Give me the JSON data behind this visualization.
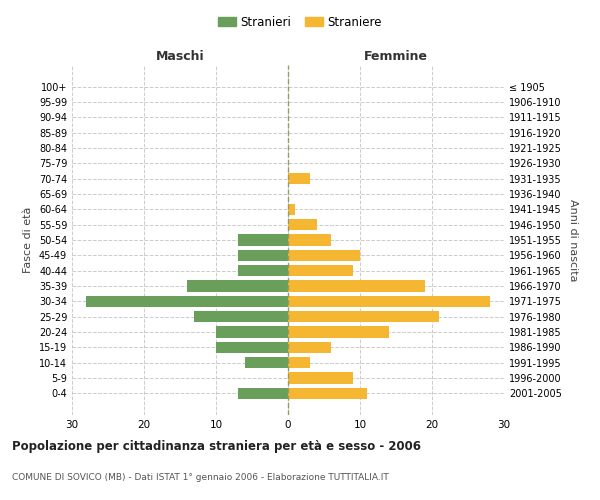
{
  "age_groups": [
    "100+",
    "95-99",
    "90-94",
    "85-89",
    "80-84",
    "75-79",
    "70-74",
    "65-69",
    "60-64",
    "55-59",
    "50-54",
    "45-49",
    "40-44",
    "35-39",
    "30-34",
    "25-29",
    "20-24",
    "15-19",
    "10-14",
    "5-9",
    "0-4"
  ],
  "birth_years": [
    "≤ 1905",
    "1906-1910",
    "1911-1915",
    "1916-1920",
    "1921-1925",
    "1926-1930",
    "1931-1935",
    "1936-1940",
    "1941-1945",
    "1946-1950",
    "1951-1955",
    "1956-1960",
    "1961-1965",
    "1966-1970",
    "1971-1975",
    "1976-1980",
    "1981-1985",
    "1986-1990",
    "1991-1995",
    "1996-2000",
    "2001-2005"
  ],
  "males": [
    0,
    0,
    0,
    0,
    0,
    0,
    0,
    0,
    0,
    0,
    7,
    7,
    7,
    14,
    28,
    13,
    10,
    10,
    6,
    0,
    7
  ],
  "females": [
    0,
    0,
    0,
    0,
    0,
    0,
    3,
    0,
    1,
    4,
    6,
    10,
    9,
    19,
    28,
    21,
    14,
    6,
    3,
    9,
    11
  ],
  "male_color": "#6a9f5b",
  "female_color": "#f5b731",
  "background_color": "#ffffff",
  "grid_color": "#cccccc",
  "xlim": [
    -30,
    30
  ],
  "xlabel_left": "Maschi",
  "xlabel_right": "Femmine",
  "ylabel_left": "Fasce di età",
  "ylabel_right": "Anni di nascita",
  "title": "Popolazione per cittadinanza straniera per età e sesso - 2006",
  "subtitle": "COMUNE DI SOVICO (MB) - Dati ISTAT 1° gennaio 2006 - Elaborazione TUTTITALIA.IT",
  "legend_stranieri": "Stranieri",
  "legend_straniere": "Straniere",
  "bar_height": 0.75
}
